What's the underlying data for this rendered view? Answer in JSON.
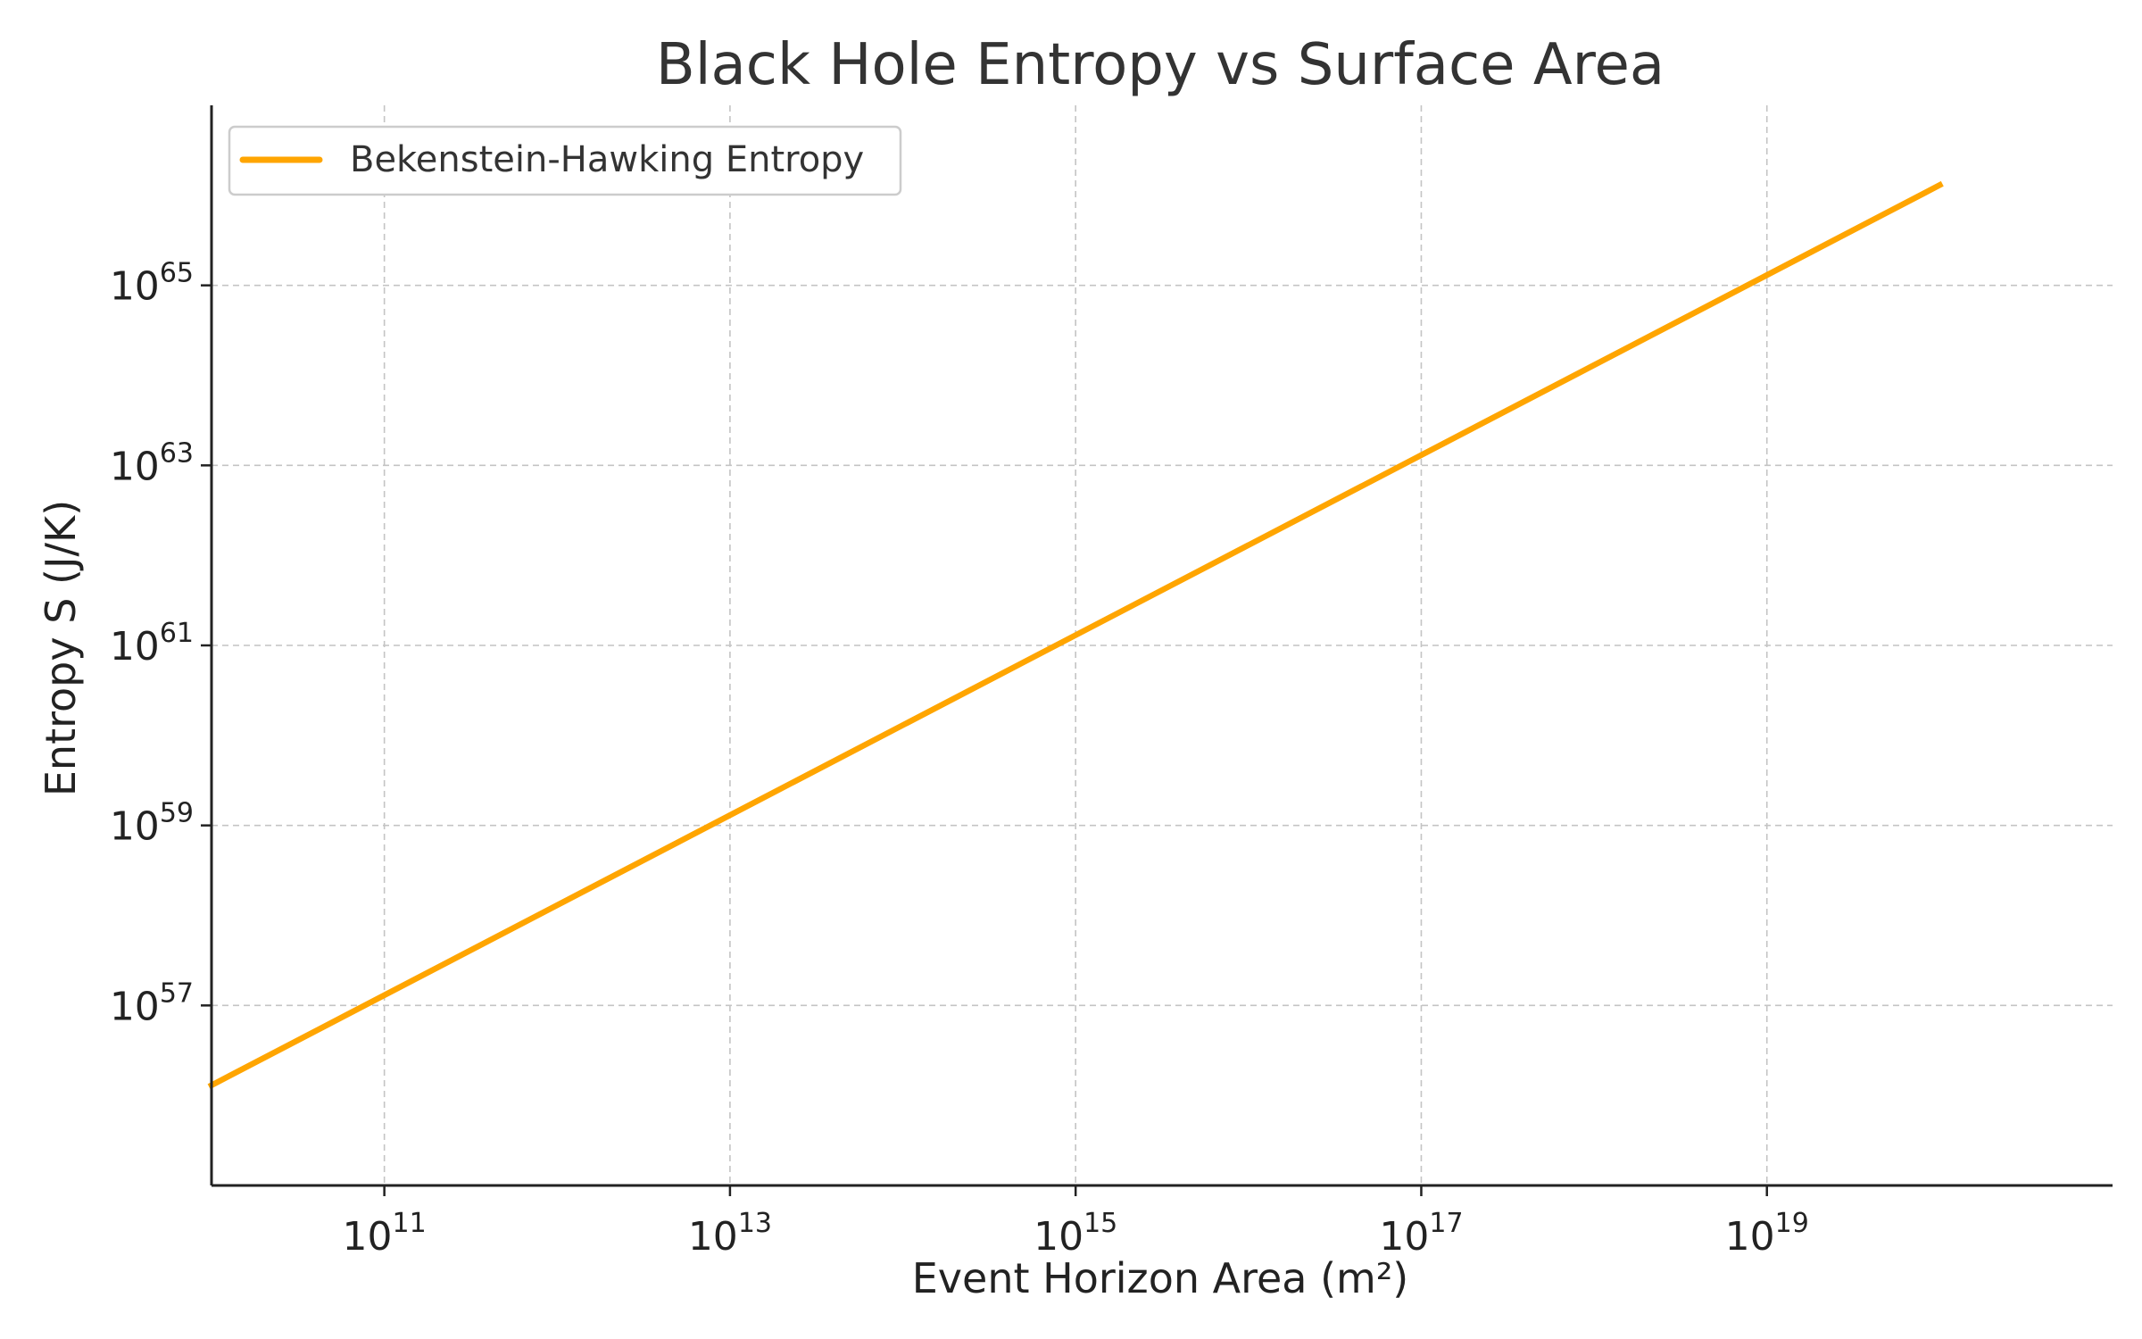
{
  "chart_data": {
    "type": "line",
    "title": "Black Hole Entropy vs Surface Area",
    "xlabel": "Event Horizon Area (m²)",
    "ylabel": "Entropy S (J/K)",
    "x_scale": "log",
    "y_scale": "log",
    "xlim": [
      10000000000.0,
      1e+21
    ],
    "ylim": [
      1e+55,
      1e+67
    ],
    "x_ticks": [
      {
        "base": "10",
        "exp": "11",
        "value": 100000000000.0
      },
      {
        "base": "10",
        "exp": "13",
        "value": 10000000000000.0
      },
      {
        "base": "10",
        "exp": "15",
        "value": 1000000000000000.0
      },
      {
        "base": "10",
        "exp": "17",
        "value": 1e+17
      },
      {
        "base": "10",
        "exp": "19",
        "value": 1e+19
      }
    ],
    "y_ticks": [
      {
        "base": "10",
        "exp": "57",
        "value": 1e+57
      },
      {
        "base": "10",
        "exp": "59",
        "value": 1e+59
      },
      {
        "base": "10",
        "exp": "61",
        "value": 1e+61
      },
      {
        "base": "10",
        "exp": "63",
        "value": 1e+63
      },
      {
        "base": "10",
        "exp": "65",
        "value": 1e+65
      }
    ],
    "grid": true,
    "legend_position": "top-left",
    "series": [
      {
        "name": "Bekenstein-Hawking Entropy",
        "color": "#FFA500",
        "x": [
          10000000000.0,
          1e+20
        ],
        "y": [
          1.3e+56,
          1.3e+66
        ]
      }
    ]
  }
}
